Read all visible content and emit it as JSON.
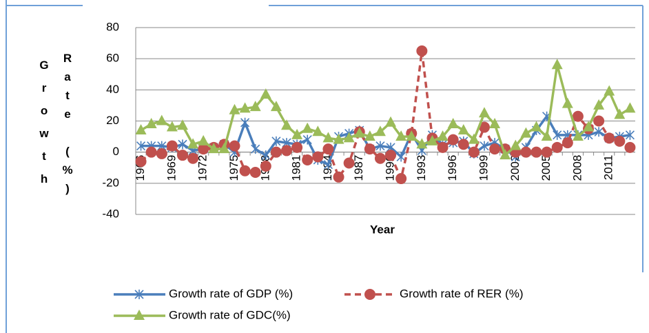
{
  "chart_data": {
    "type": "line",
    "x_label": "Year",
    "y_label": [
      "Growth",
      "Rate (%)"
    ],
    "categories": [
      "1966",
      null,
      null,
      "1969",
      null,
      null,
      "1972",
      null,
      null,
      "1975",
      null,
      null,
      "1978",
      null,
      null,
      "1981",
      null,
      null,
      "1984",
      null,
      null,
      "1987",
      null,
      null,
      "1990",
      null,
      null,
      "1993",
      null,
      null,
      "1996",
      null,
      null,
      "1999",
      null,
      null,
      "2002",
      null,
      null,
      "2005",
      null,
      null,
      "2008",
      null,
      null,
      "2011",
      null,
      null
    ],
    "ylim": [
      -40,
      80
    ],
    "yticks": [
      -40,
      -20,
      0,
      20,
      40,
      60,
      80
    ],
    "grid": true,
    "series": [
      {
        "name": "Growth rate of GDP (%)",
        "color": "#4a7ebb",
        "marker": "star",
        "dashed": false,
        "values": [
          4,
          4,
          4,
          3,
          5,
          1,
          2,
          3,
          5,
          0,
          19,
          2,
          -2,
          7,
          6,
          5,
          8,
          -5,
          -8,
          10,
          12,
          14,
          2,
          4,
          3,
          -3,
          12,
          1,
          11,
          5,
          6,
          7,
          -1,
          4,
          6,
          2,
          -3,
          3,
          14,
          23,
          11,
          11,
          11,
          11,
          13,
          9,
          10,
          11
        ]
      },
      {
        "name": "Growth rate of RER (%)",
        "color": "#c0504d",
        "marker": "circle",
        "dashed": true,
        "values": [
          -6,
          0,
          -1,
          4,
          -2,
          -4,
          2,
          3,
          5,
          4,
          -12,
          -13,
          -9,
          0,
          1,
          3,
          -5,
          -3,
          2,
          -16,
          -7,
          13,
          2,
          -4,
          -2,
          -17,
          12,
          65,
          9,
          3,
          8,
          5,
          0,
          16,
          2,
          2,
          0,
          0,
          0,
          0,
          3,
          6,
          23,
          15,
          20,
          9,
          7,
          3
        ]
      },
      {
        "name": "Growth rate  of GDC(%)",
        "color": "#9bbb59",
        "marker": "triangle",
        "dashed": false,
        "values": [
          14,
          18,
          20,
          16,
          17,
          5,
          7,
          2,
          2,
          27,
          28,
          29,
          37,
          29,
          17,
          11,
          15,
          13,
          9,
          8,
          9,
          12,
          10,
          13,
          19,
          10,
          10,
          5,
          7,
          10,
          18,
          14,
          8,
          25,
          18,
          -2,
          4,
          12,
          16,
          10,
          56,
          31,
          10,
          16,
          30,
          39,
          24,
          28
        ]
      }
    ]
  }
}
